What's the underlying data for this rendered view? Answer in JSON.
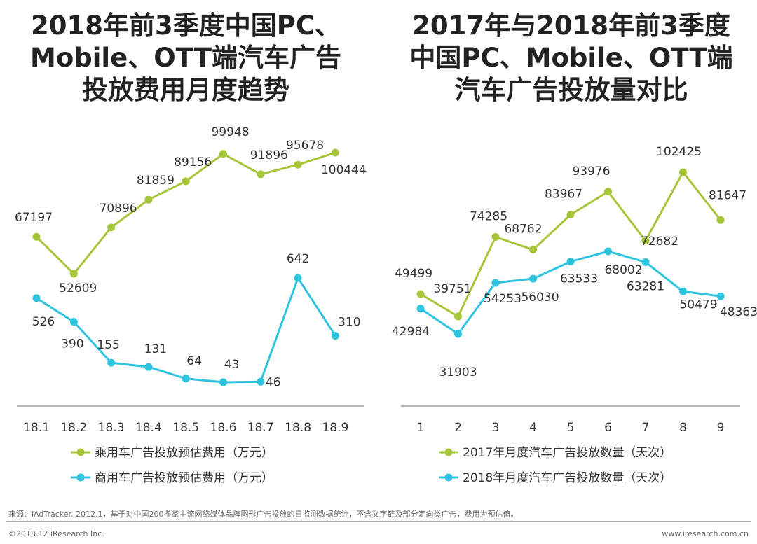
{
  "colors": {
    "green": "#a6c639",
    "cyan": "#2ec4e0",
    "axis": "#8a8a8a"
  },
  "chart_data": [
    {
      "type": "line",
      "title": "2018年前3季度中国PC、Mobile、OTT端汽车广告投放费用月度趋势",
      "title_lines": [
        "2018年前3季度中国PC、",
        "Mobile、OTT端汽车广告",
        "投放费用月度趋势"
      ],
      "categories": [
        "18.1",
        "18.2",
        "18.3",
        "18.4",
        "18.5",
        "18.6",
        "18.7",
        "18.8",
        "18.9"
      ],
      "series": [
        {
          "name": "乘用车广告投放预估费用（万元）",
          "color": "#a6c639",
          "values": [
            67197,
            52609,
            70896,
            81859,
            89156,
            99948,
            91896,
            95678,
            100444
          ]
        },
        {
          "name": "商用车广告投放预估费用（万元）",
          "color": "#2ec4e0",
          "values": [
            526,
            390,
            155,
            131,
            64,
            43,
            46,
            642,
            310
          ]
        }
      ],
      "xlabel": "",
      "ylabel": ""
    },
    {
      "type": "line",
      "title": "2017年与2018年前3季度中国PC、Mobile、OTT端汽车广告投放量对比",
      "title_lines": [
        "2017年与2018年前3季度",
        "中国PC、Mobile、OTT端",
        "汽车广告投放量对比"
      ],
      "categories": [
        "1",
        "2",
        "3",
        "4",
        "5",
        "6",
        "7",
        "8",
        "9"
      ],
      "series": [
        {
          "name": "2017年月度汽车广告投放数量（天次）",
          "color": "#a6c639",
          "values": [
            49499,
            39751,
            74285,
            68762,
            83967,
            93976,
            72682,
            102425,
            81647
          ]
        },
        {
          "name": "2018年月度汽车广告投放数量（天次）",
          "color": "#2ec4e0",
          "values": [
            42984,
            31903,
            54253,
            56030,
            63533,
            68002,
            63281,
            50479,
            48363
          ]
        }
      ],
      "xlabel": "",
      "ylabel": ""
    }
  ],
  "footer": {
    "source": "来源：iAdTracker. 2012.1，基于对中国200多家主流网络媒体品牌图形广告投放的日监测数据统计，不含文字链及部分定向类广告，费用为预估值。",
    "copyright": "©2018.12 iResearch Inc.",
    "site": "www.iresearch.com.cn"
  }
}
